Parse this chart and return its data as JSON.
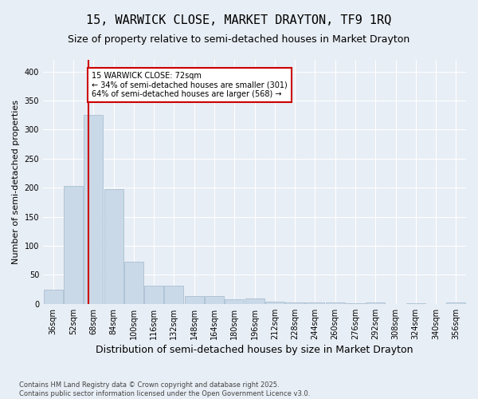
{
  "title1": "15, WARWICK CLOSE, MARKET DRAYTON, TF9 1RQ",
  "title2": "Size of property relative to semi-detached houses in Market Drayton",
  "xlabel": "Distribution of semi-detached houses by size in Market Drayton",
  "ylabel": "Number of semi-detached properties",
  "footnote": "Contains HM Land Registry data © Crown copyright and database right 2025.\nContains public sector information licensed under the Open Government Licence v3.0.",
  "categories": [
    "36sqm",
    "52sqm",
    "68sqm",
    "84sqm",
    "100sqm",
    "116sqm",
    "132sqm",
    "148sqm",
    "164sqm",
    "180sqm",
    "196sqm",
    "212sqm",
    "228sqm",
    "244sqm",
    "260sqm",
    "276sqm",
    "292sqm",
    "308sqm",
    "324sqm",
    "340sqm",
    "356sqm"
  ],
  "values": [
    25,
    203,
    325,
    198,
    72,
    32,
    32,
    14,
    14,
    8,
    9,
    4,
    2,
    2,
    3,
    1,
    2,
    0,
    1,
    0,
    2
  ],
  "bar_color": "#c9d9e8",
  "bar_edge_color": "#a0b8cc",
  "annotation_text": "15 WARWICK CLOSE: 72sqm\n← 34% of semi-detached houses are smaller (301)\n64% of semi-detached houses are larger (568) →",
  "annotation_box_color": "#ffffff",
  "annotation_box_edge": "#cc0000",
  "line_color": "#cc0000",
  "background_color": "#e8eef5",
  "title1_fontsize": 11,
  "title2_fontsize": 9,
  "tick_fontsize": 7,
  "ylabel_fontsize": 8,
  "xlabel_fontsize": 9,
  "ylim": [
    0,
    420
  ],
  "yticks": [
    0,
    50,
    100,
    150,
    200,
    250,
    300,
    350,
    400
  ]
}
